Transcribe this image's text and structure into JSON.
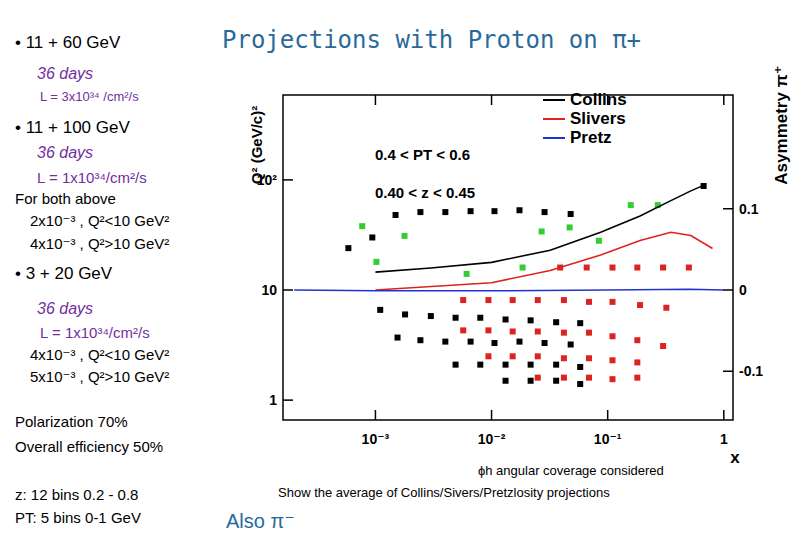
{
  "chart_data": {
    "type": "scatter",
    "title": "Projections with Proton on π+",
    "x_label": "x",
    "y_label": "Q² (GeV/c)²",
    "y2_label": "Asymmetry π⁺",
    "log": true,
    "grid": false,
    "legend": "top",
    "annotations": [
      "0.4 < PT < 0.6",
      "0.40 < z < 0.45"
    ],
    "xlim": [
      0.00016,
      1.2
    ],
    "xticks": [
      {
        "value": 0.001,
        "label": "10⁻³"
      },
      {
        "value": 0.01,
        "label": "10⁻²"
      },
      {
        "value": 0.1,
        "label": "10⁻¹"
      },
      1
    ],
    "ylim": [
      0.66,
      590
    ],
    "yticks": [
      1,
      10,
      {
        "value": 100,
        "label": "10²"
      }
    ],
    "y2lim": [
      -0.16,
      0.24
    ],
    "y2ticks": [
      -0.1,
      0,
      0.1
    ],
    "series": [
      {
        "type": "scatter",
        "marker": "square",
        "color": "#000000",
        "x": [
          0.000585,
          0.00094,
          0.00149,
          0.00244,
          0.004,
          0.0066,
          0.0106,
          0.0174,
          0.0286,
          0.048,
          0.67,
          0.0011,
          0.0018,
          0.003,
          0.0049,
          0.008,
          0.0132,
          0.0217,
          0.036,
          0.058,
          0.00155,
          0.00244,
          0.004,
          0.0066,
          0.0106,
          0.0174,
          0.0286,
          0.048,
          0.0049,
          0.008,
          0.0132,
          0.0217,
          0.036,
          0.058,
          0.0132,
          0.0217,
          0.036,
          0.058
        ],
        "values": [
          24,
          30,
          48,
          51,
          51,
          52,
          52,
          53,
          51,
          49,
          88,
          6.6,
          6.0,
          5.8,
          5.6,
          5.6,
          5.4,
          5.3,
          5.1,
          5.0,
          3.7,
          3.5,
          3.4,
          3.4,
          3.3,
          3.4,
          3.3,
          3.2,
          2.1,
          2.1,
          2.1,
          2.1,
          2.1,
          2.0,
          1.5,
          1.5,
          1.5,
          1.4
        ]
      },
      {
        "type": "scatter",
        "marker": "square",
        "color": "#dd2222",
        "x": [
          0.039,
          0.066,
          0.11,
          0.18,
          0.3,
          0.5,
          0.0057,
          0.0094,
          0.0152,
          0.025,
          0.042,
          0.069,
          0.11,
          0.19,
          0.32,
          0.0057,
          0.0094,
          0.0152,
          0.025,
          0.042,
          0.069,
          0.11,
          0.18,
          0.3,
          0.0094,
          0.0152,
          0.025,
          0.042,
          0.069,
          0.11,
          0.18,
          0.025,
          0.042,
          0.069,
          0.11,
          0.18
        ],
        "values": [
          16,
          16,
          16,
          16,
          16,
          16,
          8.1,
          8.1,
          8.1,
          8.1,
          8.1,
          7.8,
          7.8,
          7.3,
          6.9,
          4.3,
          4.3,
          4.2,
          4.2,
          4.1,
          4.1,
          3.8,
          3.5,
          3.1,
          2.5,
          2.5,
          2.5,
          2.4,
          2.4,
          2.3,
          2.2,
          1.6,
          1.6,
          1.6,
          1.55,
          1.6
        ]
      },
      {
        "type": "scatter",
        "marker": "square",
        "color": "#33cc33",
        "x": [
          0.00077,
          0.00102,
          0.00178,
          0.0061,
          0.0185,
          0.027,
          0.047,
          0.084,
          0.158,
          0.27
        ],
        "values": [
          38,
          18,
          31,
          14,
          16,
          34,
          37,
          28,
          59,
          59
        ]
      },
      {
        "name": "Collins",
        "type": "line",
        "line_style": "solid",
        "color": "#000000",
        "axis": "y2",
        "x": [
          0.001,
          0.003,
          0.01,
          0.032,
          0.087,
          0.19,
          0.35,
          0.52,
          0.7
        ],
        "values": [
          0.022,
          0.027,
          0.034,
          0.049,
          0.071,
          0.091,
          0.11,
          0.122,
          0.13
        ]
      },
      {
        "name": "Slivers",
        "type": "line",
        "line_style": "solid",
        "color": "#dd2222",
        "axis": "y2",
        "x": [
          0.001,
          0.01,
          0.032,
          0.087,
          0.19,
          0.35,
          0.52,
          0.8
        ],
        "values": [
          0.0,
          0.009,
          0.024,
          0.043,
          0.061,
          0.071,
          0.067,
          0.051
        ]
      },
      {
        "name": "Pretz",
        "type": "line",
        "line_style": "solid",
        "color": "#2233cc",
        "axis": "y2",
        "x": [
          0.0002,
          0.001,
          0.01,
          0.1,
          0.5,
          1.0
        ],
        "values": [
          0.0,
          -0.001,
          -0.001,
          0.0,
          0.001,
          0.0
        ]
      }
    ]
  },
  "slide": {
    "left_text": [
      "• 11 + 60 GeV",
      "36 days",
      "L = 3x10³⁴ /cm²/s",
      "• 11 + 100 GeV",
      "36 days",
      "L = 1x10³⁴/cm²/s",
      "For both above",
      "2x10⁻³ , Q²<10 GeV²",
      "4x10⁻³ , Q²>10 GeV²",
      "• 3 + 20 GeV",
      "36 days",
      "L = 1x10³⁴/cm²/s",
      "4x10⁻³ , Q²<10 GeV²",
      "5x10⁻³ , Q²>10 GeV²",
      "Polarization 70%",
      "Overall efficiency 50%",
      "z: 12 bins 0.2 - 0.8",
      "PT: 5 bins 0-1 GeV"
    ],
    "notes": [
      "ϕh angular coverage considered",
      "Show the average of Collins/Sivers/Pretzlosity projections"
    ],
    "footer": "Also π⁻"
  }
}
